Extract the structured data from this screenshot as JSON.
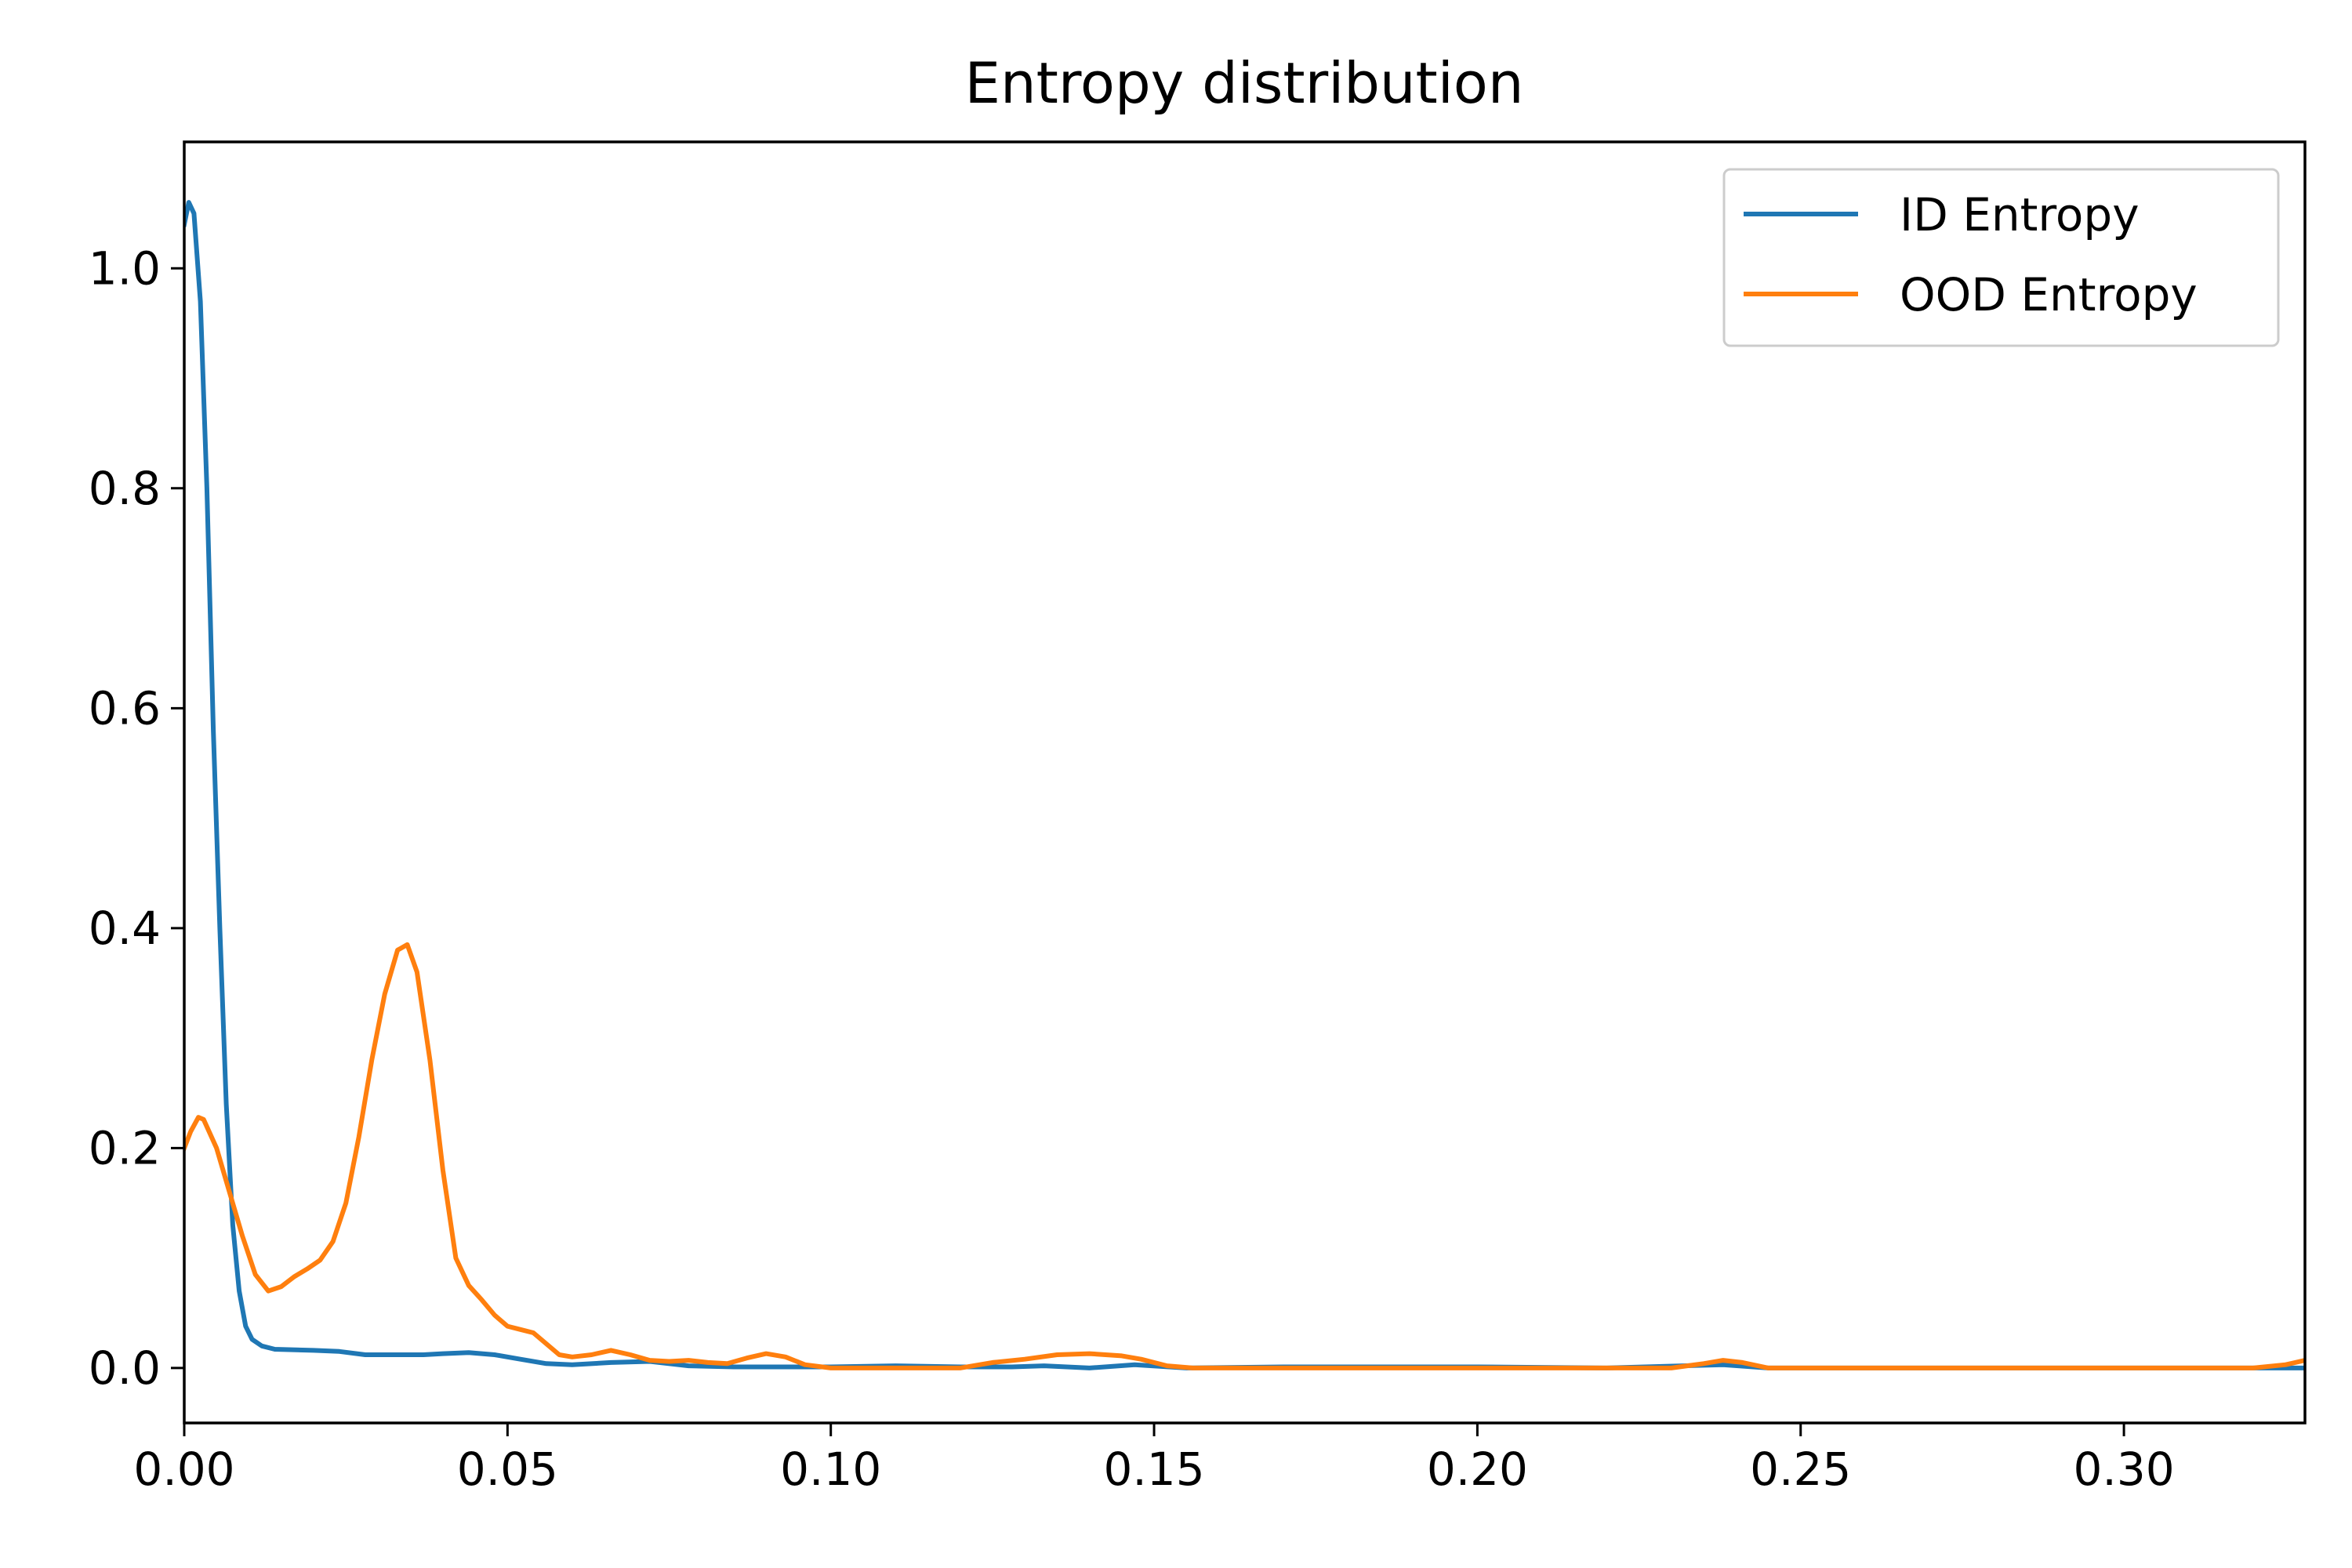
{
  "chart_data": {
    "type": "line",
    "title": "Entropy distribution",
    "xlabel": "",
    "ylabel": "",
    "xlim": [
      0.0,
      0.328
    ],
    "ylim": [
      -0.05,
      1.115
    ],
    "grid": false,
    "legend_position": "top-right",
    "x_ticks": [
      "0.00",
      "0.05",
      "0.10",
      "0.15",
      "0.20",
      "0.25",
      "0.30"
    ],
    "y_ticks": [
      "0.0",
      "0.2",
      "0.4",
      "0.6",
      "0.8",
      "1.0"
    ],
    "series": [
      {
        "name": "ID Entropy",
        "color": "#1f77b4",
        "points": [
          [
            0.0,
            1.04
          ],
          [
            0.0007,
            1.06
          ],
          [
            0.0015,
            1.05
          ],
          [
            0.0025,
            0.97
          ],
          [
            0.0035,
            0.8
          ],
          [
            0.0045,
            0.58
          ],
          [
            0.0055,
            0.4
          ],
          [
            0.0065,
            0.24
          ],
          [
            0.0075,
            0.13
          ],
          [
            0.0085,
            0.07
          ],
          [
            0.0095,
            0.038
          ],
          [
            0.0105,
            0.026
          ],
          [
            0.012,
            0.02
          ],
          [
            0.014,
            0.017
          ],
          [
            0.02,
            0.016
          ],
          [
            0.024,
            0.015
          ],
          [
            0.028,
            0.012
          ],
          [
            0.032,
            0.012
          ],
          [
            0.037,
            0.012
          ],
          [
            0.04,
            0.013
          ],
          [
            0.044,
            0.014
          ],
          [
            0.048,
            0.012
          ],
          [
            0.052,
            0.008
          ],
          [
            0.056,
            0.004
          ],
          [
            0.06,
            0.003
          ],
          [
            0.066,
            0.005
          ],
          [
            0.072,
            0.006
          ],
          [
            0.078,
            0.002
          ],
          [
            0.085,
            0.001
          ],
          [
            0.09,
            0.001
          ],
          [
            0.1,
            0.001
          ],
          [
            0.11,
            0.002
          ],
          [
            0.12,
            0.001
          ],
          [
            0.128,
            0.001
          ],
          [
            0.133,
            0.002
          ],
          [
            0.14,
            0.0
          ],
          [
            0.147,
            0.003
          ],
          [
            0.155,
            0.0
          ],
          [
            0.17,
            0.001
          ],
          [
            0.18,
            0.001
          ],
          [
            0.2,
            0.001
          ],
          [
            0.22,
            0.0
          ],
          [
            0.238,
            0.003
          ],
          [
            0.245,
            0.0
          ],
          [
            0.3,
            0.0
          ],
          [
            0.328,
            0.0
          ]
        ]
      },
      {
        "name": "OOD Entropy",
        "color": "#ff7f0e",
        "points": [
          [
            0.0,
            0.2
          ],
          [
            0.001,
            0.215
          ],
          [
            0.0022,
            0.228
          ],
          [
            0.003,
            0.226
          ],
          [
            0.005,
            0.2
          ],
          [
            0.007,
            0.16
          ],
          [
            0.009,
            0.12
          ],
          [
            0.011,
            0.085
          ],
          [
            0.013,
            0.07
          ],
          [
            0.015,
            0.074
          ],
          [
            0.017,
            0.083
          ],
          [
            0.019,
            0.09
          ],
          [
            0.021,
            0.098
          ],
          [
            0.023,
            0.115
          ],
          [
            0.025,
            0.15
          ],
          [
            0.027,
            0.21
          ],
          [
            0.029,
            0.28
          ],
          [
            0.031,
            0.34
          ],
          [
            0.033,
            0.38
          ],
          [
            0.0345,
            0.385
          ],
          [
            0.036,
            0.36
          ],
          [
            0.038,
            0.28
          ],
          [
            0.04,
            0.18
          ],
          [
            0.042,
            0.1
          ],
          [
            0.044,
            0.075
          ],
          [
            0.046,
            0.062
          ],
          [
            0.048,
            0.048
          ],
          [
            0.05,
            0.038
          ],
          [
            0.052,
            0.035
          ],
          [
            0.054,
            0.032
          ],
          [
            0.056,
            0.022
          ],
          [
            0.058,
            0.012
          ],
          [
            0.06,
            0.01
          ],
          [
            0.063,
            0.012
          ],
          [
            0.066,
            0.016
          ],
          [
            0.069,
            0.012
          ],
          [
            0.072,
            0.007
          ],
          [
            0.075,
            0.006
          ],
          [
            0.078,
            0.007
          ],
          [
            0.081,
            0.005
          ],
          [
            0.084,
            0.004
          ],
          [
            0.087,
            0.009
          ],
          [
            0.09,
            0.013
          ],
          [
            0.093,
            0.01
          ],
          [
            0.096,
            0.003
          ],
          [
            0.1,
            0.0
          ],
          [
            0.11,
            0.0
          ],
          [
            0.12,
            0.0
          ],
          [
            0.125,
            0.005
          ],
          [
            0.13,
            0.008
          ],
          [
            0.135,
            0.012
          ],
          [
            0.14,
            0.013
          ],
          [
            0.145,
            0.011
          ],
          [
            0.148,
            0.008
          ],
          [
            0.152,
            0.002
          ],
          [
            0.156,
            0.0
          ],
          [
            0.17,
            0.0
          ],
          [
            0.2,
            0.0
          ],
          [
            0.23,
            0.0
          ],
          [
            0.235,
            0.004
          ],
          [
            0.238,
            0.007
          ],
          [
            0.241,
            0.005
          ],
          [
            0.245,
            0.0
          ],
          [
            0.3,
            0.0
          ],
          [
            0.32,
            0.0
          ],
          [
            0.325,
            0.003
          ],
          [
            0.328,
            0.007
          ]
        ]
      }
    ]
  }
}
